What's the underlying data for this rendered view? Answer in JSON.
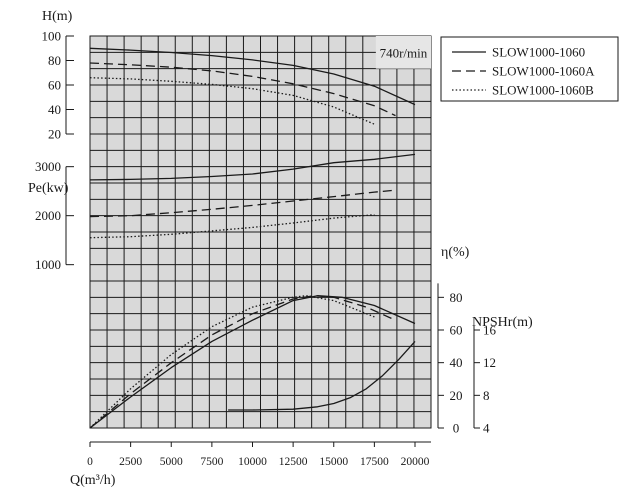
{
  "chart_data": {
    "type": "line",
    "speed_label": "740r/min",
    "x_axis": {
      "label": "Q(m³/h)",
      "range": [
        0,
        20000
      ],
      "ticks": [
        0,
        2500,
        5000,
        7500,
        10000,
        12500,
        15000,
        17500,
        20000
      ],
      "tick_labels": [
        "0",
        "2500",
        "5000",
        "7500",
        "10000",
        "12500",
        "15000",
        "17500",
        "20000"
      ]
    },
    "axes": {
      "head": {
        "label": "H(m)",
        "range": [
          20,
          100
        ],
        "ticks": [
          20,
          40,
          60,
          80,
          100
        ],
        "tick_labels": [
          "20",
          "40",
          "60",
          "80",
          "100"
        ]
      },
      "power": {
        "label": "Pe(kw)",
        "range": [
          1000,
          3000
        ],
        "ticks": [
          1000,
          2000,
          3000
        ],
        "tick_labels": [
          "1000",
          "2000",
          "3000"
        ]
      },
      "efficiency": {
        "label": "η(%)",
        "range": [
          0,
          80
        ],
        "ticks": [
          0,
          20,
          40,
          60,
          80
        ],
        "tick_labels": [
          "0",
          "20",
          "40",
          "60",
          "80"
        ]
      },
      "npsh": {
        "label": "NPSHr(m)",
        "range": [
          4,
          16
        ],
        "ticks": [
          4,
          8,
          12,
          16
        ],
        "tick_labels": [
          "4",
          "8",
          "12",
          "16"
        ]
      }
    },
    "legend": {
      "position": "top-right",
      "entries": [
        "SLOW1000-1060",
        "SLOW1000-1060A",
        "SLOW1000-1060B"
      ]
    },
    "grid": true,
    "series": [
      {
        "name": "SLOW1000-1060",
        "style": "solid",
        "head": {
          "x": [
            0,
            2500,
            5000,
            7500,
            10000,
            12500,
            15000,
            17500,
            20000
          ],
          "y": [
            90,
            88.5,
            86.5,
            84,
            80.5,
            76,
            69,
            59,
            44
          ]
        },
        "power": {
          "x": [
            0,
            2500,
            5000,
            7500,
            10000,
            12500,
            15000,
            17500,
            20000
          ],
          "y": [
            2730,
            2740,
            2760,
            2800,
            2850,
            2950,
            3080,
            3150,
            3250
          ]
        },
        "efficiency": {
          "x": [
            0,
            2500,
            5000,
            7500,
            10000,
            12500,
            14000,
            15500,
            17500,
            20000
          ],
          "y": [
            0,
            19,
            37,
            53,
            66,
            78,
            81,
            80,
            75,
            64
          ]
        }
      },
      {
        "name": "SLOW1000-1060A",
        "style": "dashed",
        "head": {
          "x": [
            0,
            2500,
            5000,
            7500,
            10000,
            12500,
            15000,
            17500,
            18800
          ],
          "y": [
            78,
            76.5,
            74.5,
            71.5,
            67,
            61,
            53,
            43,
            35
          ]
        },
        "power": {
          "x": [
            0,
            2500,
            5000,
            7500,
            10000,
            12500,
            15000,
            17500,
            18800
          ],
          "y": [
            1980,
            2000,
            2060,
            2130,
            2210,
            2300,
            2390,
            2480,
            2520
          ]
        },
        "efficiency": {
          "x": [
            0,
            2500,
            5000,
            7500,
            10000,
            12500,
            13800,
            15000,
            17000,
            18800
          ],
          "y": [
            0,
            21,
            40,
            57,
            70,
            79,
            81,
            80,
            74,
            66
          ]
        }
      },
      {
        "name": "SLOW1000-1060B",
        "style": "dotted",
        "head": {
          "x": [
            0,
            2500,
            5000,
            7500,
            10000,
            12500,
            15000,
            17500
          ],
          "y": [
            66,
            65,
            63,
            60.5,
            57,
            51.5,
            42,
            28
          ]
        },
        "power": {
          "x": [
            0,
            2500,
            5000,
            7500,
            10000,
            12500,
            15000,
            17500
          ],
          "y": [
            1550,
            1570,
            1620,
            1690,
            1760,
            1850,
            1950,
            2020
          ]
        },
        "efficiency": {
          "x": [
            0,
            2500,
            5000,
            7500,
            10000,
            12500,
            13300,
            15000,
            17500
          ],
          "y": [
            0,
            24,
            45,
            62,
            74,
            80,
            81,
            78,
            68
          ]
        }
      }
    ],
    "npsh_curve": {
      "x": [
        8500,
        10000,
        12500,
        14000,
        15000,
        16000,
        17000,
        18000,
        19000,
        20000
      ],
      "y": [
        6.2,
        6.2,
        6.3,
        6.6,
        7.0,
        7.7,
        8.8,
        10.4,
        12.4,
        14.6
      ]
    }
  }
}
